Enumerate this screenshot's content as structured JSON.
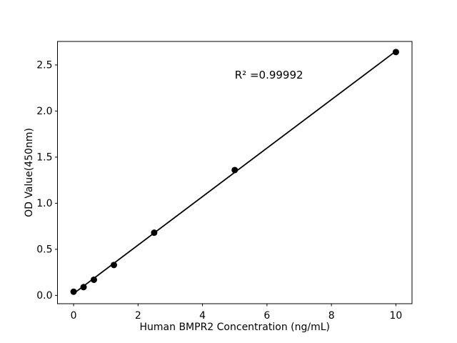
{
  "figure": {
    "background": "#ffffff",
    "foreground": "#000000"
  },
  "chart_data": {
    "type": "scatter",
    "title": "",
    "xlabel": "Human BMPR2 Concentration (ng/mL)",
    "ylabel": "OD Value(450nm)",
    "xlim": [
      -0.5,
      10.5
    ],
    "ylim": [
      -0.09,
      2.755
    ],
    "grid": false,
    "legend": null,
    "xticks": {
      "values": [
        0,
        2,
        4,
        6,
        8,
        10
      ],
      "labels": [
        "0",
        "2",
        "4",
        "6",
        "8",
        "10"
      ]
    },
    "yticks": {
      "values": [
        0,
        0.5,
        1.0,
        1.5,
        2.0,
        2.5
      ],
      "labels": [
        "0.0",
        "0.5",
        "1.0",
        "1.5",
        "2.0",
        "2.5"
      ]
    },
    "series": [
      {
        "name": "standard-curve-points",
        "color": "#000000",
        "marker": "circle",
        "marker_radius": 4.5,
        "x": [
          0,
          0.31,
          0.63,
          1.25,
          2.5,
          5,
          10
        ],
        "y": [
          0.04,
          0.09,
          0.17,
          0.33,
          0.68,
          1.36,
          2.64
        ]
      }
    ],
    "fit_line": {
      "color": "#000000",
      "width": 1.8,
      "x": [
        0,
        10
      ],
      "y": [
        0.02,
        2.65
      ]
    },
    "annotation": {
      "text": "R² =0.99992",
      "x": 5,
      "y": 2.35,
      "align": "left-baseline"
    }
  }
}
